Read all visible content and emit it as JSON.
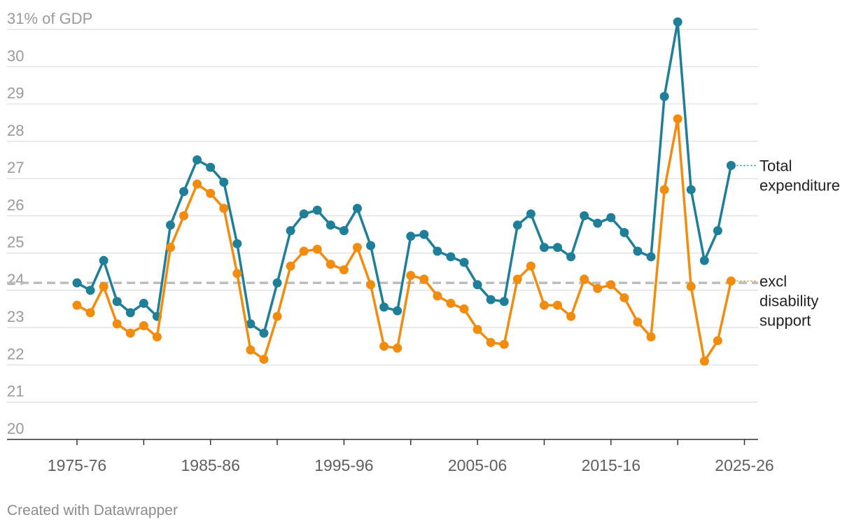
{
  "chart_data": {
    "type": "line",
    "title": "",
    "xlabel": "",
    "ylabel": "% of GDP",
    "y_unit_label": "% of GDP",
    "ylim": [
      20,
      31
    ],
    "yticks": [
      20,
      21,
      22,
      23,
      24,
      25,
      26,
      27,
      28,
      29,
      30,
      31
    ],
    "x_start_year": 1975,
    "x_end_year": 2026,
    "x_tick_labels": [
      "1975-76",
      "1985-86",
      "1995-96",
      "2005-06",
      "2015-16",
      "2025-26"
    ],
    "reference_line": {
      "value": 24.2,
      "style": "dashed",
      "color": "#bdbdbd"
    },
    "series": [
      {
        "name": "Total expenditure",
        "label_lines": [
          "Total",
          "expenditure"
        ],
        "color": "#1f7f99",
        "values": [
          24.2,
          24.0,
          24.8,
          23.7,
          23.4,
          23.65,
          23.3,
          25.75,
          26.65,
          27.5,
          27.3,
          26.9,
          25.25,
          23.1,
          22.85,
          24.2,
          25.6,
          26.05,
          26.15,
          25.75,
          25.6,
          26.2,
          25.2,
          23.55,
          23.45,
          25.45,
          25.5,
          25.05,
          24.9,
          24.75,
          24.15,
          23.75,
          23.7,
          25.75,
          26.05,
          25.15,
          25.15,
          24.9,
          26.0,
          25.8,
          25.95,
          25.55,
          25.05,
          24.9,
          29.2,
          31.2,
          26.7,
          24.8,
          25.6,
          27.35
        ]
      },
      {
        "name": "excl disability support",
        "label_lines": [
          "excl",
          "disability",
          "support"
        ],
        "color": "#f28c0f",
        "values": [
          23.6,
          23.4,
          24.1,
          23.1,
          22.85,
          23.05,
          22.75,
          25.15,
          26.0,
          26.85,
          26.6,
          26.2,
          24.45,
          22.4,
          22.15,
          23.3,
          24.65,
          25.05,
          25.1,
          24.7,
          24.55,
          25.15,
          24.15,
          22.5,
          22.45,
          24.4,
          24.3,
          23.85,
          23.65,
          23.5,
          22.95,
          22.6,
          22.55,
          24.3,
          24.65,
          23.6,
          23.6,
          23.3,
          24.3,
          24.05,
          24.15,
          23.8,
          23.15,
          22.75,
          26.7,
          28.6,
          24.1,
          22.1,
          22.65,
          24.25
        ]
      }
    ]
  },
  "credit": "Created with Datawrapper"
}
